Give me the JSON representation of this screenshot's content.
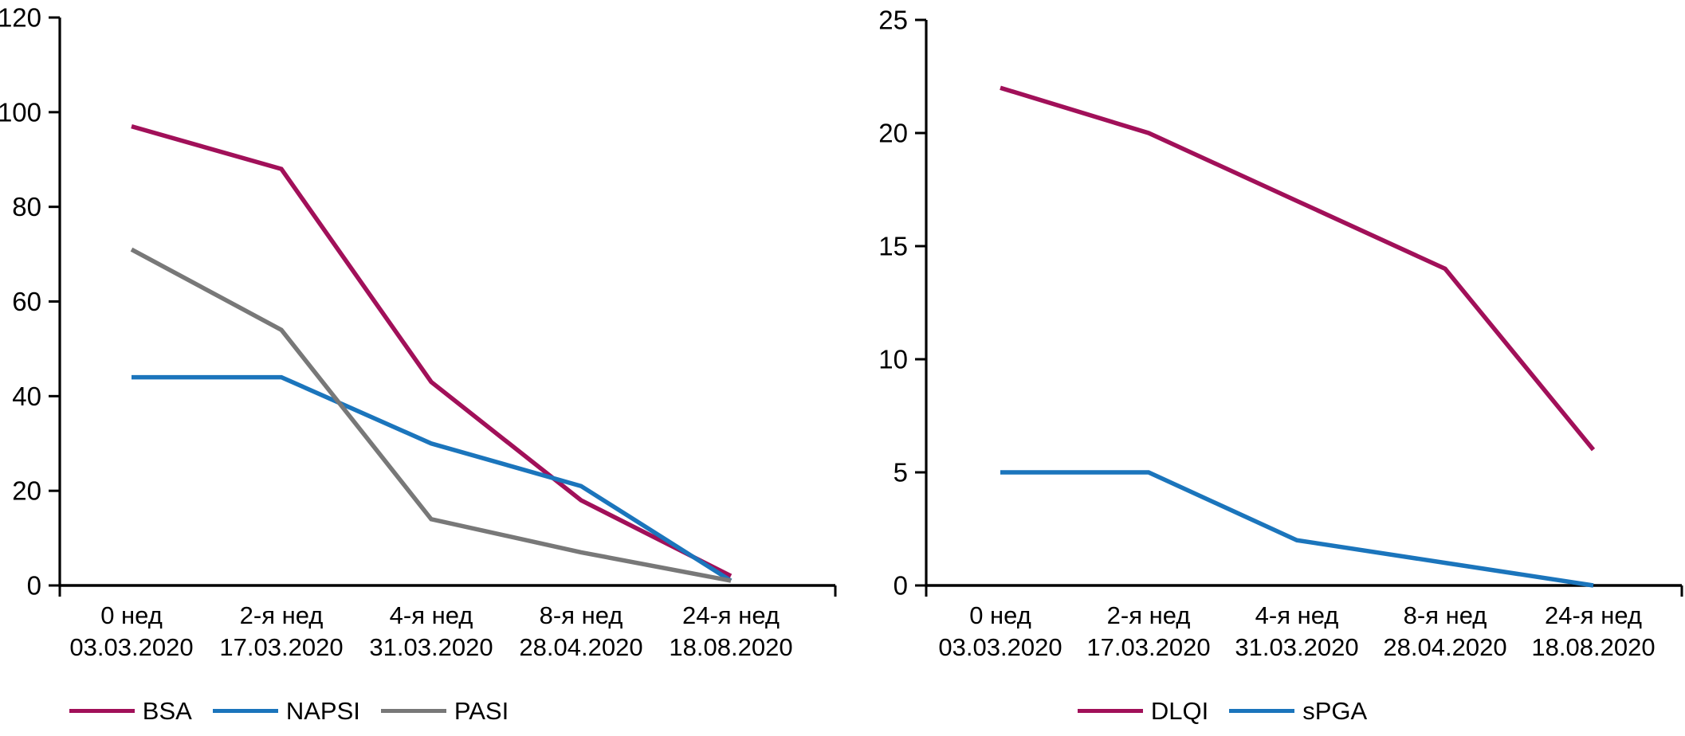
{
  "figure": {
    "background": "#ffffff",
    "text_color": "#000000",
    "axis_color": "#000000"
  },
  "chart_data": [
    {
      "type": "line",
      "title": "",
      "xlabel": "",
      "ylabel": "",
      "grid": false,
      "legend_position": "bottom",
      "categories": [
        {
          "week": "0 нед",
          "date": "03.03.2020"
        },
        {
          "week": "2-я нед",
          "date": "17.03.2020"
        },
        {
          "week": "4-я нед",
          "date": "31.03.2020"
        },
        {
          "week": "8-я нед",
          "date": "28.04.2020"
        },
        {
          "week": "24-я нед",
          "date": "18.08.2020"
        }
      ],
      "y_axis": {
        "min": 0,
        "max": 120,
        "step": 20,
        "ticks": [
          0,
          20,
          40,
          60,
          80,
          100,
          120
        ]
      },
      "series": [
        {
          "name": "BSA",
          "color": "#a11059",
          "values": [
            97,
            88,
            43,
            18,
            2
          ]
        },
        {
          "name": "NAPSI",
          "color": "#1b75bc",
          "values": [
            44,
            44,
            30,
            21,
            1
          ]
        },
        {
          "name": "PASI",
          "color": "#787878",
          "values": [
            71,
            54,
            14,
            7,
            1
          ]
        }
      ]
    },
    {
      "type": "line",
      "title": "",
      "xlabel": "",
      "ylabel": "",
      "grid": false,
      "legend_position": "bottom",
      "categories": [
        {
          "week": "0 нед",
          "date": "03.03.2020"
        },
        {
          "week": "2-я нед",
          "date": "17.03.2020"
        },
        {
          "week": "4-я нед",
          "date": "31.03.2020"
        },
        {
          "week": "8-я нед",
          "date": "28.04.2020"
        },
        {
          "week": "24-я нед",
          "date": "18.08.2020"
        }
      ],
      "y_axis": {
        "min": 0,
        "max": 25,
        "step": 5,
        "ticks": [
          0,
          5,
          10,
          15,
          20,
          25
        ]
      },
      "series": [
        {
          "name": "DLQI",
          "color": "#a11059",
          "values": [
            22,
            20,
            17,
            14,
            6
          ]
        },
        {
          "name": "sPGA",
          "color": "#1b75bc",
          "values": [
            5,
            5,
            2,
            1,
            0
          ]
        }
      ]
    }
  ]
}
